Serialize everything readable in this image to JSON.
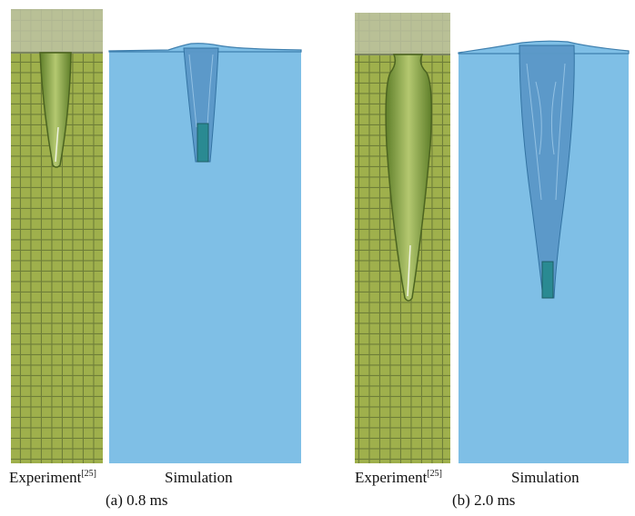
{
  "figure": {
    "panels": [
      {
        "id": "a",
        "experiment_label": "Experiment",
        "reference": "[25]",
        "simulation_label": "Simulation",
        "caption_letter": "(a)",
        "caption_time": "0.8 ms"
      },
      {
        "id": "b",
        "experiment_label": "Experiment",
        "reference": "[25]",
        "simulation_label": "Simulation",
        "caption_letter": "(b)",
        "caption_time": "2.0 ms"
      }
    ],
    "colors": {
      "water": "#7fbfe6",
      "water_line": "#4a8fc0",
      "cavity": "#5a97c7",
      "projectile": "#2a8a92",
      "grid_bg": "#9cae4a",
      "grid_line": "#6f7f3a",
      "top_fixture": "#b8bc9e"
    }
  }
}
